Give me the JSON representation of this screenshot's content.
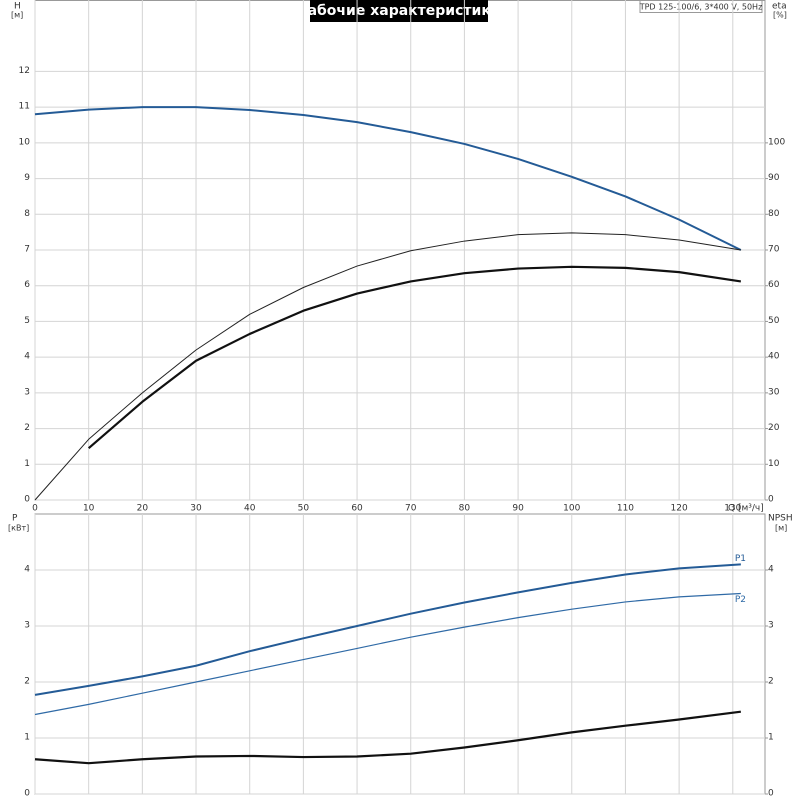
{
  "title": "Рабочие характеристики",
  "model": "TPD 125-100/6, 3*400 V, 50Hz",
  "chart_data": [
    {
      "type": "line",
      "xlabel": "Q [м³/ч]",
      "ylabel": "H",
      "ylabel_unit": "[м]",
      "y2label": "eta",
      "y2label_unit": "[%]",
      "x": [
        0,
        10,
        20,
        30,
        40,
        50,
        60,
        70,
        80,
        90,
        100,
        110,
        120,
        131.5
      ],
      "xlim": [
        0,
        136
      ],
      "xticks": [
        0,
        10,
        20,
        30,
        40,
        50,
        60,
        70,
        80,
        90,
        100,
        110,
        120,
        130
      ],
      "ylim": [
        0,
        14
      ],
      "yticks": [
        0,
        1,
        2,
        3,
        4,
        5,
        6,
        7,
        8,
        9,
        10,
        11,
        12
      ],
      "y2lim": [
        0,
        140
      ],
      "y2ticks": [
        0,
        10,
        20,
        30,
        40,
        50,
        60,
        70,
        80,
        90,
        100
      ],
      "grid": true,
      "series": [
        {
          "color": "#245b96",
          "width": 2,
          "values": [
            10.8,
            10.93,
            11.0,
            11.0,
            10.92,
            10.78,
            10.58,
            10.3,
            9.97,
            9.55,
            9.05,
            8.5,
            7.85,
            7.0
          ]
        },
        {
          "color": "#222222",
          "width": 1,
          "axis": "y2",
          "values": [
            0,
            17,
            30,
            42,
            52,
            59.5,
            65.5,
            69.8,
            72.5,
            74.3,
            74.8,
            74.3,
            72.8,
            70
          ]
        },
        {
          "color": "#111111",
          "width": 2.2,
          "axis": "y2",
          "values": [
            null,
            14.5,
            27.5,
            39,
            46.5,
            53,
            57.8,
            61.2,
            63.5,
            64.8,
            65.3,
            65,
            63.8,
            61.2
          ]
        }
      ]
    },
    {
      "type": "line",
      "ylabel": "P",
      "ylabel_unit": "[кВт]",
      "y2label": "NPSH",
      "y2label_unit": "[м]",
      "x": [
        0,
        10,
        20,
        30,
        40,
        50,
        60,
        70,
        80,
        90,
        100,
        110,
        120,
        131.5
      ],
      "xlim": [
        0,
        136
      ],
      "xticks": [
        0,
        10,
        20,
        30,
        40,
        50,
        60,
        70,
        80,
        90,
        100,
        110,
        120,
        130
      ],
      "ylim": [
        0,
        5
      ],
      "yticks": [
        0,
        1,
        2,
        3,
        4
      ],
      "y2lim": [
        0,
        5
      ],
      "y2ticks": [
        0,
        1,
        2,
        3,
        4
      ],
      "grid": true,
      "series": [
        {
          "name": "P1",
          "color": "#245b96",
          "width": 2,
          "values": [
            1.77,
            1.93,
            2.1,
            2.29,
            2.55,
            2.78,
            3.0,
            3.22,
            3.42,
            3.6,
            3.77,
            3.92,
            4.03,
            4.1
          ]
        },
        {
          "name": "P2",
          "color": "#2f6aa6",
          "width": 1.2,
          "values": [
            1.42,
            1.6,
            1.8,
            2.0,
            2.2,
            2.4,
            2.6,
            2.8,
            2.98,
            3.15,
            3.3,
            3.43,
            3.52,
            3.58
          ]
        },
        {
          "color": "#111111",
          "width": 2.2,
          "axis": "y2",
          "values": [
            0.62,
            0.55,
            0.62,
            0.67,
            0.68,
            0.66,
            0.67,
            0.72,
            0.83,
            0.96,
            1.1,
            1.22,
            1.33,
            1.47
          ]
        }
      ]
    }
  ]
}
